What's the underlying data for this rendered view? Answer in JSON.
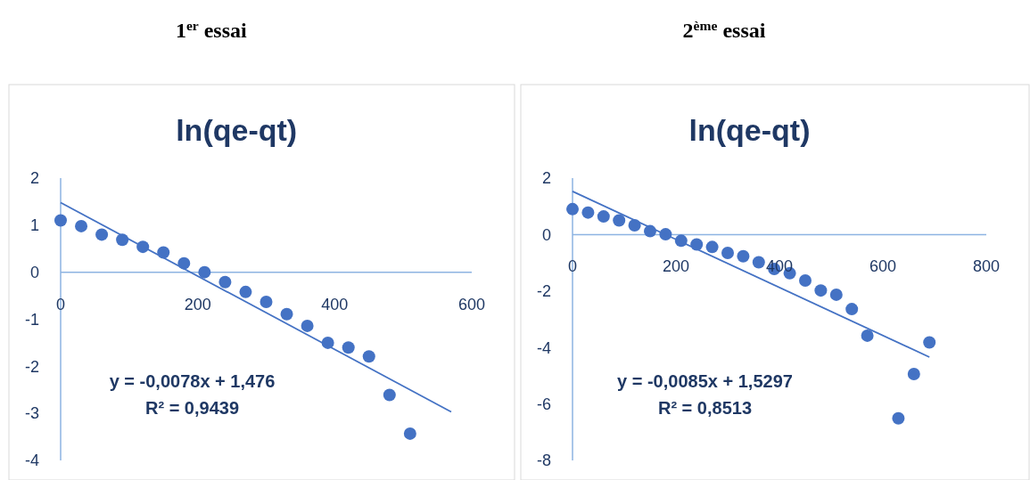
{
  "chart_data": [
    {
      "type": "scatter",
      "title": "ln(qe-qt)",
      "subtitle": "1$^{er}$ essai",
      "annotations": [
        "y = -0,0078x + 1,476",
        "R² = 0,9439"
      ],
      "xlim": [
        0,
        600
      ],
      "xticks": [
        0,
        200,
        400,
        600
      ],
      "ylim": [
        -4,
        2
      ],
      "yticks": [
        -4,
        -3,
        -2,
        -1,
        0,
        1,
        2
      ],
      "grid": false,
      "marker": "circle",
      "series": [
        {
          "color": "#4472c4",
          "x": [
            0,
            30,
            60,
            90,
            120,
            150,
            180,
            210,
            240,
            270,
            300,
            330,
            360,
            390,
            420,
            450,
            480,
            510
          ],
          "values": [
            1.1,
            0.98,
            0.8,
            0.69,
            0.54,
            0.42,
            0.19,
            0.0,
            -0.21,
            -0.42,
            -0.63,
            -0.89,
            -1.14,
            -1.5,
            -1.6,
            -1.79,
            -2.61,
            -3.43
          ]
        },
        {
          "type": "line",
          "color": "#4472c4",
          "marker": "none",
          "x": [
            0,
            570
          ],
          "values": [
            1.48,
            -2.97
          ]
        }
      ]
    },
    {
      "type": "scatter",
      "title": "ln(qe-qt)",
      "subtitle": "2$^{ème}$ essai",
      "annotations": [
        "y = -0,0085x + 1,5297",
        "R² = 0,8513"
      ],
      "xlim": [
        0,
        800
      ],
      "xticks": [
        0,
        200,
        400,
        600,
        800
      ],
      "ylim": [
        -8,
        2
      ],
      "yticks": [
        -8,
        -6,
        -4,
        -2,
        0,
        2
      ],
      "grid": false,
      "marker": "circle",
      "series": [
        {
          "color": "#4472c4",
          "x": [
            0,
            30,
            60,
            90,
            120,
            150,
            180,
            210,
            240,
            270,
            300,
            330,
            360,
            390,
            420,
            450,
            480,
            510,
            540,
            570,
            630,
            660,
            690
          ],
          "values": [
            0.9,
            0.78,
            0.64,
            0.5,
            0.33,
            0.12,
            0.01,
            -0.22,
            -0.35,
            -0.44,
            -0.65,
            -0.77,
            -0.98,
            -1.22,
            -1.37,
            -1.63,
            -1.98,
            -2.13,
            -2.64,
            -3.58,
            -6.51,
            -4.94,
            -3.82
          ]
        },
        {
          "type": "line",
          "color": "#4472c4",
          "marker": "none",
          "x": [
            0,
            690
          ],
          "values": [
            1.53,
            -4.34
          ]
        }
      ]
    }
  ]
}
